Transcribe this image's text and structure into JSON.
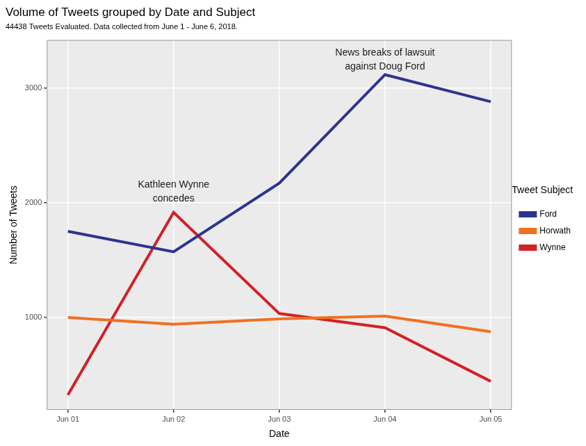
{
  "chart_data": {
    "type": "line",
    "title": "Volume of Tweets grouped by Date and Subject",
    "subtitle": "44438 Tweets Evaluated. Data collected from June 1 - June 6, 2018.",
    "x_label": "Date",
    "y_label": "Number of Tweets",
    "categories": [
      "Jun 01",
      "Jun 02",
      "Jun 03",
      "Jun 04",
      "Jun 05"
    ],
    "series": [
      {
        "name": "Ford",
        "color": "#2b3590",
        "values": [
          1752,
          1574,
          2172,
          3118,
          2882
        ]
      },
      {
        "name": "Horwath",
        "color": "#f07022",
        "values": [
          1000,
          941,
          988,
          1012,
          876
        ]
      },
      {
        "name": "Wynne",
        "color": "#d42027",
        "values": [
          325,
          1917,
          1035,
          911,
          444
        ]
      }
    ],
    "ylim": [
      195,
      3420
    ],
    "yticks": [
      1000,
      2000,
      3000
    ],
    "grid": true,
    "legend": "right",
    "legend_title": "Tweet Subject",
    "annotations": [
      {
        "text": "Kathleen Wynne\nconcedes",
        "x": "Jun 02",
        "y": 2095
      },
      {
        "text": "News breaks of lawsuit\nagainst Doug Ford",
        "x": "Jun 04",
        "y": 3245
      }
    ]
  }
}
